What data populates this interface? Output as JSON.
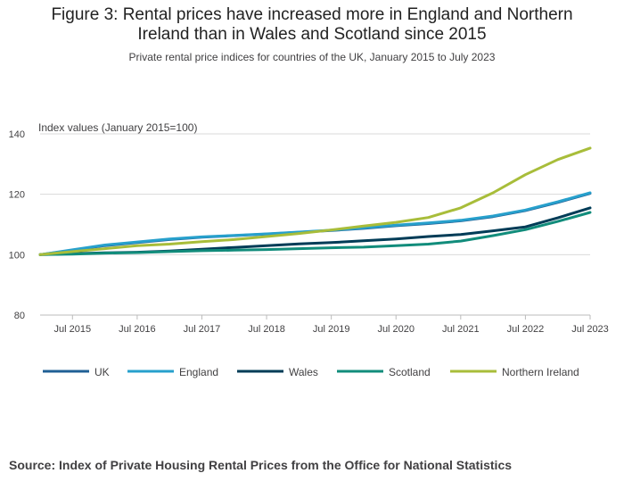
{
  "title_lines": [
    "Figure 3: Rental prices have increased more in England and Northern",
    "Ireland than in Wales and Scotland since 2015"
  ],
  "subtitle": "Private rental price indices for countries of the UK, January 2015 to July 2023",
  "source": "Source: Index of Private Housing Rental Prices from the Office for National Statistics",
  "chart_data": {
    "type": "line",
    "ylabel": "Index values (January 2015=100)",
    "xlabel": "",
    "xlim": [
      "2015-01",
      "2023-07"
    ],
    "ylim": [
      80,
      140
    ],
    "yticks": [
      80,
      100,
      120,
      140
    ],
    "xticks": [
      {
        "at": "2015-07",
        "label": "Jul 2015"
      },
      {
        "at": "2016-07",
        "label": "Jul 2016"
      },
      {
        "at": "2017-07",
        "label": "Jul 2017"
      },
      {
        "at": "2018-07",
        "label": "Jul 2018"
      },
      {
        "at": "2019-07",
        "label": "Jul 2019"
      },
      {
        "at": "2020-07",
        "label": "Jul 2020"
      },
      {
        "at": "2021-07",
        "label": "Jul 2021"
      },
      {
        "at": "2022-07",
        "label": "Jul 2022"
      },
      {
        "at": "2023-07",
        "label": "Jul 2023"
      }
    ],
    "grid": "horizontal",
    "legend_position": "bottom",
    "x": [
      "2015-01",
      "2015-07",
      "2016-01",
      "2016-07",
      "2017-01",
      "2017-07",
      "2018-01",
      "2018-07",
      "2019-01",
      "2019-07",
      "2020-01",
      "2020-07",
      "2021-01",
      "2021-07",
      "2022-01",
      "2022-07",
      "2023-01",
      "2023-07"
    ],
    "series": [
      {
        "name": "UK",
        "color": "#206095",
        "values": [
          100,
          101.5,
          103,
          104,
          105,
          105.8,
          106.3,
          106.8,
          107.4,
          108,
          108.7,
          109.6,
          110.3,
          111.2,
          112.6,
          114.6,
          117.3,
          120.3
        ]
      },
      {
        "name": "England",
        "color": "#27a0cc",
        "values": [
          100,
          101.6,
          103.2,
          104.2,
          105.2,
          105.9,
          106.4,
          106.9,
          107.5,
          108.1,
          108.9,
          109.8,
          110.5,
          111.4,
          112.8,
          114.8,
          117.5,
          120.5
        ]
      },
      {
        "name": "Wales",
        "color": "#003c57",
        "values": [
          100,
          100.3,
          100.6,
          100.8,
          101.2,
          101.8,
          102.4,
          103,
          103.6,
          104,
          104.6,
          105.2,
          106,
          106.7,
          107.9,
          109.2,
          112.2,
          115.5
        ]
      },
      {
        "name": "Scotland",
        "color": "#118c7b",
        "values": [
          100,
          100.2,
          100.5,
          100.7,
          101,
          101.3,
          101.5,
          101.7,
          102,
          102.3,
          102.5,
          103,
          103.5,
          104.5,
          106.3,
          108.3,
          111,
          114
        ]
      },
      {
        "name": "Northern Ireland",
        "color": "#a8bd3a",
        "values": [
          100,
          101,
          102,
          103,
          103.5,
          104.3,
          105,
          106,
          107,
          108.2,
          109.5,
          110.7,
          112.3,
          115.5,
          120.5,
          126.5,
          131.5,
          135.3
        ]
      }
    ]
  }
}
